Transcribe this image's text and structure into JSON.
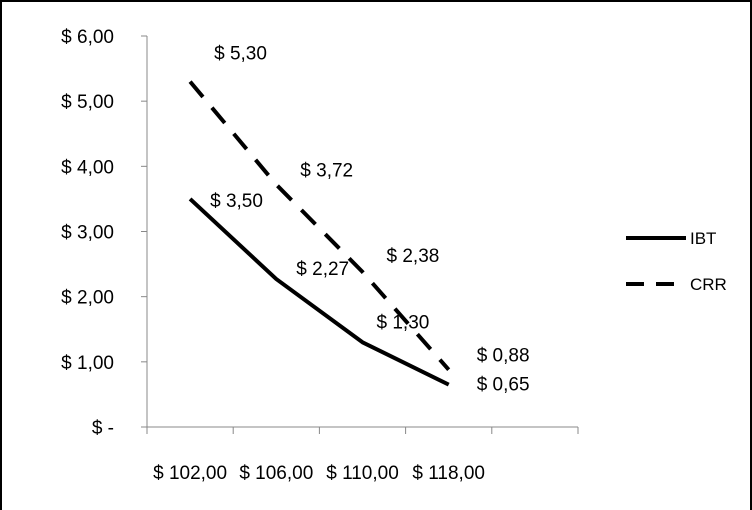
{
  "chart_data": {
    "type": "line",
    "title": "",
    "xlabel": "",
    "ylabel": "",
    "categories": [
      "$ 102,00",
      "$ 106,00",
      "$ 110,00",
      "$ 118,00"
    ],
    "y_ticks": [
      "$ -",
      "$ 1,00",
      "$ 2,00",
      "$ 3,00",
      "$ 4,00",
      "$ 5,00",
      "$ 6,00"
    ],
    "ylim": [
      0,
      6
    ],
    "grid": false,
    "legend_position": "right",
    "series": [
      {
        "name": "IBT",
        "style": "solid",
        "color": "#000000",
        "values": [
          3.5,
          2.27,
          1.3,
          0.65
        ],
        "labels": [
          "$ 3,50",
          "$ 2,27",
          "$ 1,30",
          "$ 0,65"
        ]
      },
      {
        "name": "CRR",
        "style": "dashed",
        "color": "#000000",
        "values": [
          5.3,
          3.72,
          2.38,
          0.88
        ],
        "labels": [
          "$ 5,30",
          "$ 3,72",
          "$ 2,38",
          "$ 0,88"
        ]
      }
    ]
  }
}
